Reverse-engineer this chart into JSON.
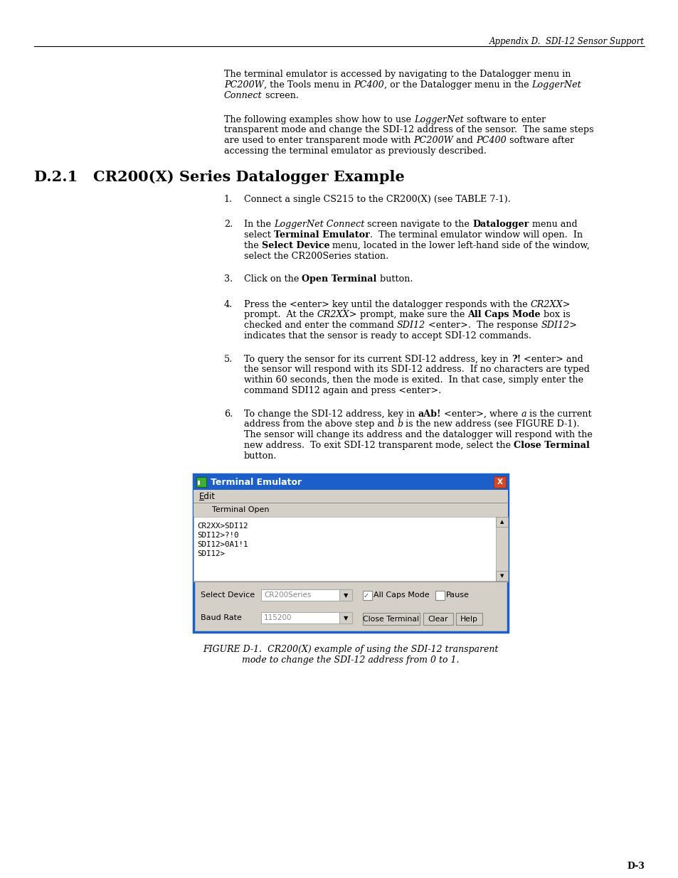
{
  "page_bg": "#ffffff",
  "header_text": "Appendix D.  SDI-12 Sensor Support",
  "section_title": "D.2.1   CR200(X) Series Datalogger Example",
  "footer_text": "D-3",
  "terminal_title": "Terminal Emulator",
  "terminal_menu": "Edit",
  "terminal_toolbar": "Terminal Open",
  "terminal_lines": [
    "CR2XX>SDI12",
    "SDI12>?!0",
    "SDI12>0A1!1",
    "SDI12>"
  ],
  "terminal_label1": "Select Device",
  "terminal_field1": "CR200Series",
  "terminal_label2": "Baud Rate",
  "terminal_field2": "115200",
  "terminal_checkbox1": "All Caps Mode",
  "terminal_checkbox2": "Pause",
  "terminal_btn1": "Close Terminal",
  "terminal_btn2": "Clear",
  "terminal_btn3": "Help",
  "win_blue": "#1c5fc8",
  "win_bg": "#d4d0c8",
  "win_border": "#1c5fc8"
}
